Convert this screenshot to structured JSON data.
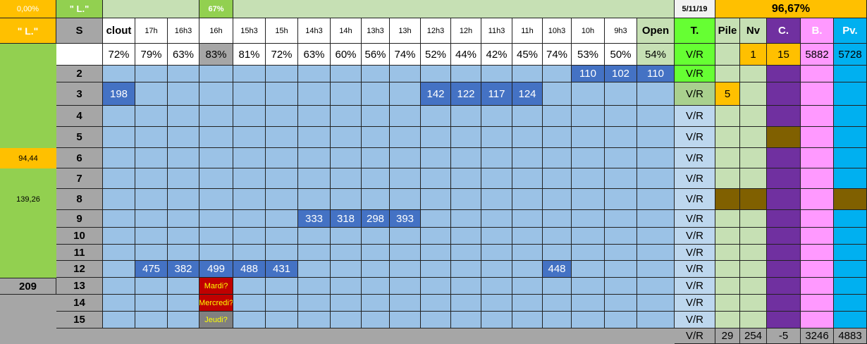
{
  "top": {
    "left": "0,00%",
    "name": "\" L.\"",
    "mid": "67%",
    "date": "5/11/19",
    "total": "96,67%"
  },
  "header": {
    "left": "\" L.\"",
    "columns": [
      "S",
      "clout",
      "17h",
      "16h3",
      "16h",
      "15h3",
      "15h",
      "14h3",
      "14h",
      "13h3",
      "13h",
      "12h3",
      "12h",
      "11h3",
      "11h",
      "10h3",
      "10h",
      "9h3",
      "Open",
      "T.",
      "Pile",
      "Nv",
      "C.",
      "B.",
      "Pv."
    ]
  },
  "percents": {
    "values": [
      "72%",
      "79%",
      "63%",
      "83%",
      "81%",
      "72%",
      "63%",
      "60%",
      "56%",
      "74%",
      "52%",
      "44%",
      "42%",
      "45%",
      "74%",
      "53%",
      "50%",
      "54%"
    ],
    "t": "V/R",
    "nv": 1,
    "c": 15,
    "b": 5882,
    "pv": 5728
  },
  "rows": [
    {
      "label": 2,
      "cells": [
        null,
        null,
        null,
        null,
        null,
        null,
        null,
        null,
        null,
        null,
        null,
        null,
        null,
        null,
        null,
        110,
        102,
        110
      ],
      "t": "V/R"
    },
    {
      "label": 3,
      "cells": [
        198,
        null,
        null,
        null,
        null,
        null,
        null,
        null,
        null,
        null,
        142,
        122,
        117,
        124,
        null,
        null,
        null,
        null
      ],
      "t": "V/R",
      "pile": 5
    },
    {
      "label": 4,
      "cells": [
        null,
        null,
        null,
        null,
        null,
        null,
        null,
        null,
        null,
        null,
        null,
        null,
        null,
        null,
        null,
        null,
        null,
        null
      ],
      "t": "V/R"
    },
    {
      "label": 5,
      "cells": [
        null,
        null,
        null,
        null,
        null,
        null,
        null,
        null,
        null,
        null,
        null,
        null,
        null,
        null,
        null,
        null,
        null,
        null
      ],
      "t": "V/R"
    },
    {
      "label": 6,
      "side": "94,44",
      "cells": [
        null,
        null,
        null,
        null,
        null,
        null,
        null,
        null,
        null,
        null,
        null,
        null,
        null,
        null,
        null,
        null,
        null,
        null
      ],
      "t": "V/R"
    },
    {
      "label": 7,
      "cells": [
        null,
        null,
        null,
        null,
        null,
        null,
        null,
        null,
        null,
        null,
        null,
        null,
        null,
        null,
        null,
        null,
        null,
        null
      ],
      "t": "V/R"
    },
    {
      "label": 8,
      "side": "139,26",
      "cells": [
        null,
        null,
        null,
        null,
        null,
        null,
        null,
        null,
        null,
        null,
        null,
        null,
        null,
        null,
        null,
        null,
        null,
        null
      ],
      "t": "V/R"
    },
    {
      "label": 9,
      "cells": [
        null,
        null,
        null,
        null,
        null,
        null,
        333,
        318,
        298,
        393,
        null,
        null,
        null,
        null,
        null,
        null,
        null,
        null
      ],
      "t": "V/R"
    },
    {
      "label": 10,
      "cells": [
        null,
        null,
        null,
        null,
        null,
        null,
        null,
        null,
        null,
        null,
        null,
        null,
        null,
        null,
        null,
        null,
        null,
        null
      ],
      "t": "V/R"
    },
    {
      "label": 11,
      "cells": [
        null,
        null,
        null,
        null,
        null,
        null,
        null,
        null,
        null,
        null,
        null,
        null,
        null,
        null,
        null,
        null,
        null,
        null
      ],
      "t": "V/R"
    },
    {
      "label": 12,
      "cells": [
        null,
        475,
        382,
        499,
        488,
        431,
        null,
        null,
        null,
        null,
        null,
        null,
        null,
        null,
        448,
        null,
        null,
        null
      ],
      "t": "V/R"
    },
    {
      "label": 13,
      "side": "209",
      "cells": [
        null,
        null,
        null,
        "Mardi?",
        null,
        null,
        null,
        null,
        null,
        null,
        null,
        null,
        null,
        null,
        null,
        null,
        null,
        null
      ],
      "t": "V/R"
    },
    {
      "label": 14,
      "cells": [
        null,
        null,
        null,
        "Mercredi?",
        null,
        null,
        null,
        null,
        null,
        null,
        null,
        null,
        null,
        null,
        null,
        null,
        null,
        null
      ],
      "t": "V/R"
    },
    {
      "label": 15,
      "cells": [
        null,
        null,
        null,
        "Jeudi?",
        null,
        null,
        null,
        null,
        null,
        null,
        null,
        null,
        null,
        null,
        null,
        null,
        null,
        null
      ],
      "t": "V/R"
    }
  ],
  "totals": {
    "t": "V/R",
    "pile": 29,
    "nv": 254,
    "c": -5,
    "b": 3246,
    "pv": 4883
  }
}
